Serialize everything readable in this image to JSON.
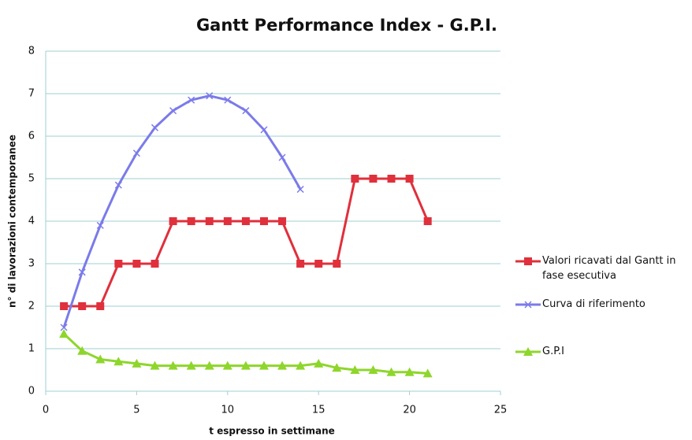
{
  "chart_data": {
    "type": "line",
    "title": "Gantt Performance Index - G.P.I.",
    "xlabel": "t espresso in settimane",
    "ylabel": "n° di lavorazioni contemporanee",
    "xlim": [
      0,
      25
    ],
    "xticks": [
      0,
      5,
      10,
      15,
      20,
      25
    ],
    "ylim": [
      0,
      8
    ],
    "yticks": [
      0,
      1,
      2,
      3,
      4,
      5,
      6,
      7,
      8
    ],
    "grid": true,
    "legend": "right",
    "series": [
      {
        "name": "Valori ricavati dal Gantt in fase esecutiva",
        "color": "#e0303c",
        "marker": "square",
        "x": [
          1,
          2,
          3,
          4,
          5,
          6,
          7,
          8,
          9,
          10,
          11,
          12,
          13,
          14,
          15,
          16,
          17,
          18,
          19,
          20,
          21
        ],
        "values": [
          2,
          2,
          2,
          3,
          3,
          3,
          4,
          4,
          4,
          4,
          4,
          4,
          4,
          3,
          3,
          3,
          5,
          5,
          5,
          5,
          4
        ]
      },
      {
        "name": "Curva di riferimento",
        "color": "#7b7bea",
        "marker": "x",
        "x": [
          1,
          2,
          3,
          4,
          5,
          6,
          7,
          8,
          9,
          10,
          11,
          12,
          13,
          14
        ],
        "values": [
          1.5,
          2.8,
          3.9,
          4.85,
          5.6,
          6.2,
          6.6,
          6.85,
          6.95,
          6.85,
          6.6,
          6.15,
          5.5,
          4.75
        ]
      },
      {
        "name": "G.P.I",
        "color": "#8ed62c",
        "marker": "triangle",
        "x": [
          1,
          2,
          3,
          4,
          5,
          6,
          7,
          8,
          9,
          10,
          11,
          12,
          13,
          14,
          15,
          16,
          17,
          18,
          19,
          20,
          21
        ],
        "values": [
          1.35,
          0.95,
          0.75,
          0.7,
          0.65,
          0.6,
          0.6,
          0.6,
          0.6,
          0.6,
          0.6,
          0.6,
          0.6,
          0.6,
          0.65,
          0.55,
          0.5,
          0.5,
          0.45,
          0.45,
          0.42
        ]
      }
    ]
  }
}
